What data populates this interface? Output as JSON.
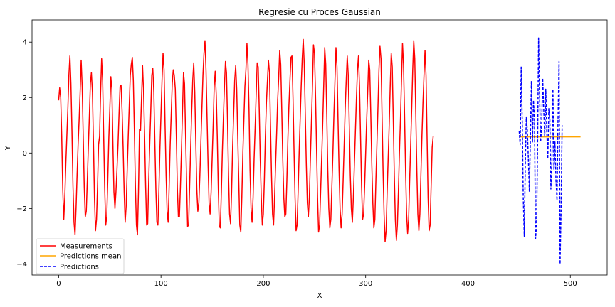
{
  "chart_data": {
    "type": "line",
    "title": "Regresie cu Proces Gaussian",
    "xlabel": "X",
    "ylabel": "Y",
    "xlim": [
      -26,
      536
    ],
    "ylim": [
      -4.4,
      4.8
    ],
    "xticks": [
      0,
      100,
      200,
      300,
      400,
      500
    ],
    "yticks": [
      -4,
      -2,
      0,
      2,
      4
    ],
    "grid": false,
    "legend_position": "lower-left",
    "series": [
      {
        "name": "Measurements",
        "color": "#ff0000",
        "style": "solid",
        "x_start": 0,
        "x_step": 1,
        "values": [
          1.9,
          2.35,
          2.0,
          0.6,
          -1.3,
          -2.4,
          -1.6,
          -0.4,
          0.6,
          1.6,
          2.8,
          3.5,
          2.5,
          0.8,
          -1.2,
          -2.5,
          -2.95,
          -2.0,
          -0.8,
          0.3,
          1.2,
          2.2,
          3.35,
          2.4,
          0.6,
          -1.2,
          -2.3,
          -2.1,
          -1.0,
          0.2,
          1.3,
          2.5,
          2.9,
          2.2,
          0.4,
          -1.6,
          -2.8,
          -2.4,
          -1.2,
          0.3,
          0.6,
          2.2,
          3.4,
          2.6,
          0.6,
          -1.3,
          -2.6,
          -2.3,
          -1.0,
          0.5,
          1.6,
          2.75,
          2.3,
          0.4,
          -1.4,
          -2.0,
          -1.4,
          -0.6,
          0.3,
          1.4,
          2.4,
          2.45,
          1.5,
          0.2,
          -1.4,
          -2.5,
          -1.9,
          -0.6,
          0.6,
          1.7,
          2.8,
          3.2,
          3.45,
          2.6,
          0.8,
          -1.2,
          -2.6,
          -2.95,
          -1.4,
          0.85,
          0.8,
          2.0,
          3.15,
          2.2,
          0.6,
          -1.2,
          -2.6,
          -2.55,
          -1.0,
          0.3,
          1.5,
          2.8,
          3.05,
          2.2,
          0.4,
          -1.3,
          -2.5,
          -2.6,
          -1.3,
          0.2,
          1.4,
          2.6,
          3.6,
          3.0,
          1.0,
          -0.8,
          -2.1,
          -2.5,
          -1.2,
          0.3,
          1.4,
          2.5,
          3.0,
          2.8,
          2.3,
          0.6,
          -1.3,
          -2.3,
          -2.3,
          -1.2,
          0.1,
          1.5,
          2.9,
          2.5,
          0.7,
          -1.0,
          -2.65,
          -2.6,
          -1.2,
          0.2,
          1.5,
          2.6,
          3.25,
          2.2,
          0.4,
          -1.3,
          -2.1,
          -1.8,
          -0.8,
          0.4,
          1.6,
          2.8,
          3.6,
          4.05,
          3.0,
          1.3,
          -0.4,
          -1.8,
          -2.2,
          -1.4,
          -0.2,
          1.0,
          2.4,
          2.95,
          2.1,
          0.6,
          -1.3,
          -2.65,
          -2.7,
          -1.4,
          0.1,
          1.3,
          2.4,
          3.3,
          2.9,
          1.2,
          -0.8,
          -2.2,
          -2.55,
          -1.4,
          0.2,
          1.4,
          2.6,
          3.15,
          2.3,
          0.6,
          -1.0,
          -2.6,
          -2.85,
          -1.6,
          0.0,
          1.2,
          2.4,
          3.0,
          3.95,
          3.2,
          1.6,
          -0.6,
          -2.0,
          -2.5,
          -1.6,
          -0.2,
          0.9,
          2.1,
          3.25,
          3.1,
          1.6,
          -0.2,
          -1.6,
          -2.6,
          -2.2,
          -1.0,
          0.6,
          1.8,
          2.6,
          3.35,
          2.9,
          1.0,
          -0.8,
          -2.2,
          -2.6,
          -1.6,
          -0.4,
          0.7,
          1.9,
          2.7,
          3.7,
          3.2,
          1.6,
          -0.2,
          -1.6,
          -2.3,
          -2.2,
          -1.0,
          0.5,
          1.7,
          2.6,
          3.45,
          3.5,
          2.0,
          0.1,
          -1.6,
          -2.8,
          -2.6,
          -1.4,
          0.0,
          1.2,
          2.4,
          3.4,
          4.1,
          3.2,
          1.4,
          -0.4,
          -1.8,
          -2.3,
          -1.6,
          -0.2,
          1.1,
          2.4,
          3.9,
          3.6,
          2.1,
          0.2,
          -1.6,
          -2.85,
          -2.6,
          -1.4,
          -0.2,
          1.0,
          2.4,
          3.8,
          3.2,
          1.4,
          -0.6,
          -2.0,
          -2.7,
          -2.4,
          -1.2,
          0.0,
          1.4,
          2.6,
          3.8,
          3.1,
          1.2,
          -0.6,
          -2.0,
          -2.7,
          -2.2,
          -1.0,
          0.3,
          1.6,
          2.6,
          3.5,
          2.8,
          1.0,
          -0.8,
          -2.0,
          -2.5,
          -1.6,
          -0.4,
          0.8,
          2.0,
          3.0,
          3.5,
          2.4,
          0.6,
          -1.2,
          -2.4,
          -2.2,
          -1.2,
          0.0,
          1.2,
          2.2,
          3.35,
          3.0,
          1.4,
          -0.4,
          -1.8,
          -2.7,
          -2.4,
          -1.0,
          0.3,
          1.6,
          3.0,
          3.85,
          3.4,
          1.4,
          -0.6,
          -2.2,
          -3.2,
          -2.8,
          -1.4,
          -0.2,
          1.0,
          2.4,
          3.6,
          3.1,
          1.2,
          -0.8,
          -2.4,
          -3.15,
          -2.6,
          -1.4,
          0.0,
          1.2,
          2.6,
          3.95,
          3.2,
          1.4,
          -0.6,
          -2.2,
          -2.9,
          -2.4,
          -1.0,
          0.3,
          1.6,
          3.0,
          4.05,
          3.4,
          1.4,
          -0.6,
          -2.2,
          -2.8,
          -2.2,
          -0.8,
          0.6,
          1.8,
          2.8,
          3.7,
          2.8,
          0.6,
          -1.6,
          -2.8,
          -2.6,
          -1.2,
          0.2,
          0.6
        ]
      },
      {
        "name": "Predictions mean",
        "color": "#ffa500",
        "style": "solid",
        "x": [
          450,
          510
        ],
        "values": [
          0.58,
          0.58
        ]
      },
      {
        "name": "Predictions",
        "color": "#0000ff",
        "style": "dashed",
        "x_start": 450,
        "x_step": 1,
        "values": [
          0.8,
          0.3,
          3.1,
          1.2,
          -1.6,
          -3.0,
          -0.4,
          1.3,
          0.8,
          -0.2,
          -1.4,
          0.6,
          2.6,
          0.4,
          1.9,
          1.2,
          -3.1,
          -2.6,
          0.2,
          4.15,
          2.0,
          0.4,
          1.0,
          2.7,
          1.6,
          0.6,
          2.3,
          0.8,
          -0.2,
          1.6,
          1.2,
          -1.3,
          -0.4,
          2.3,
          -0.6,
          0.4,
          -1.0,
          -1.7,
          1.2,
          3.3,
          -4.0,
          -2.0,
          1.0
        ]
      }
    ]
  }
}
